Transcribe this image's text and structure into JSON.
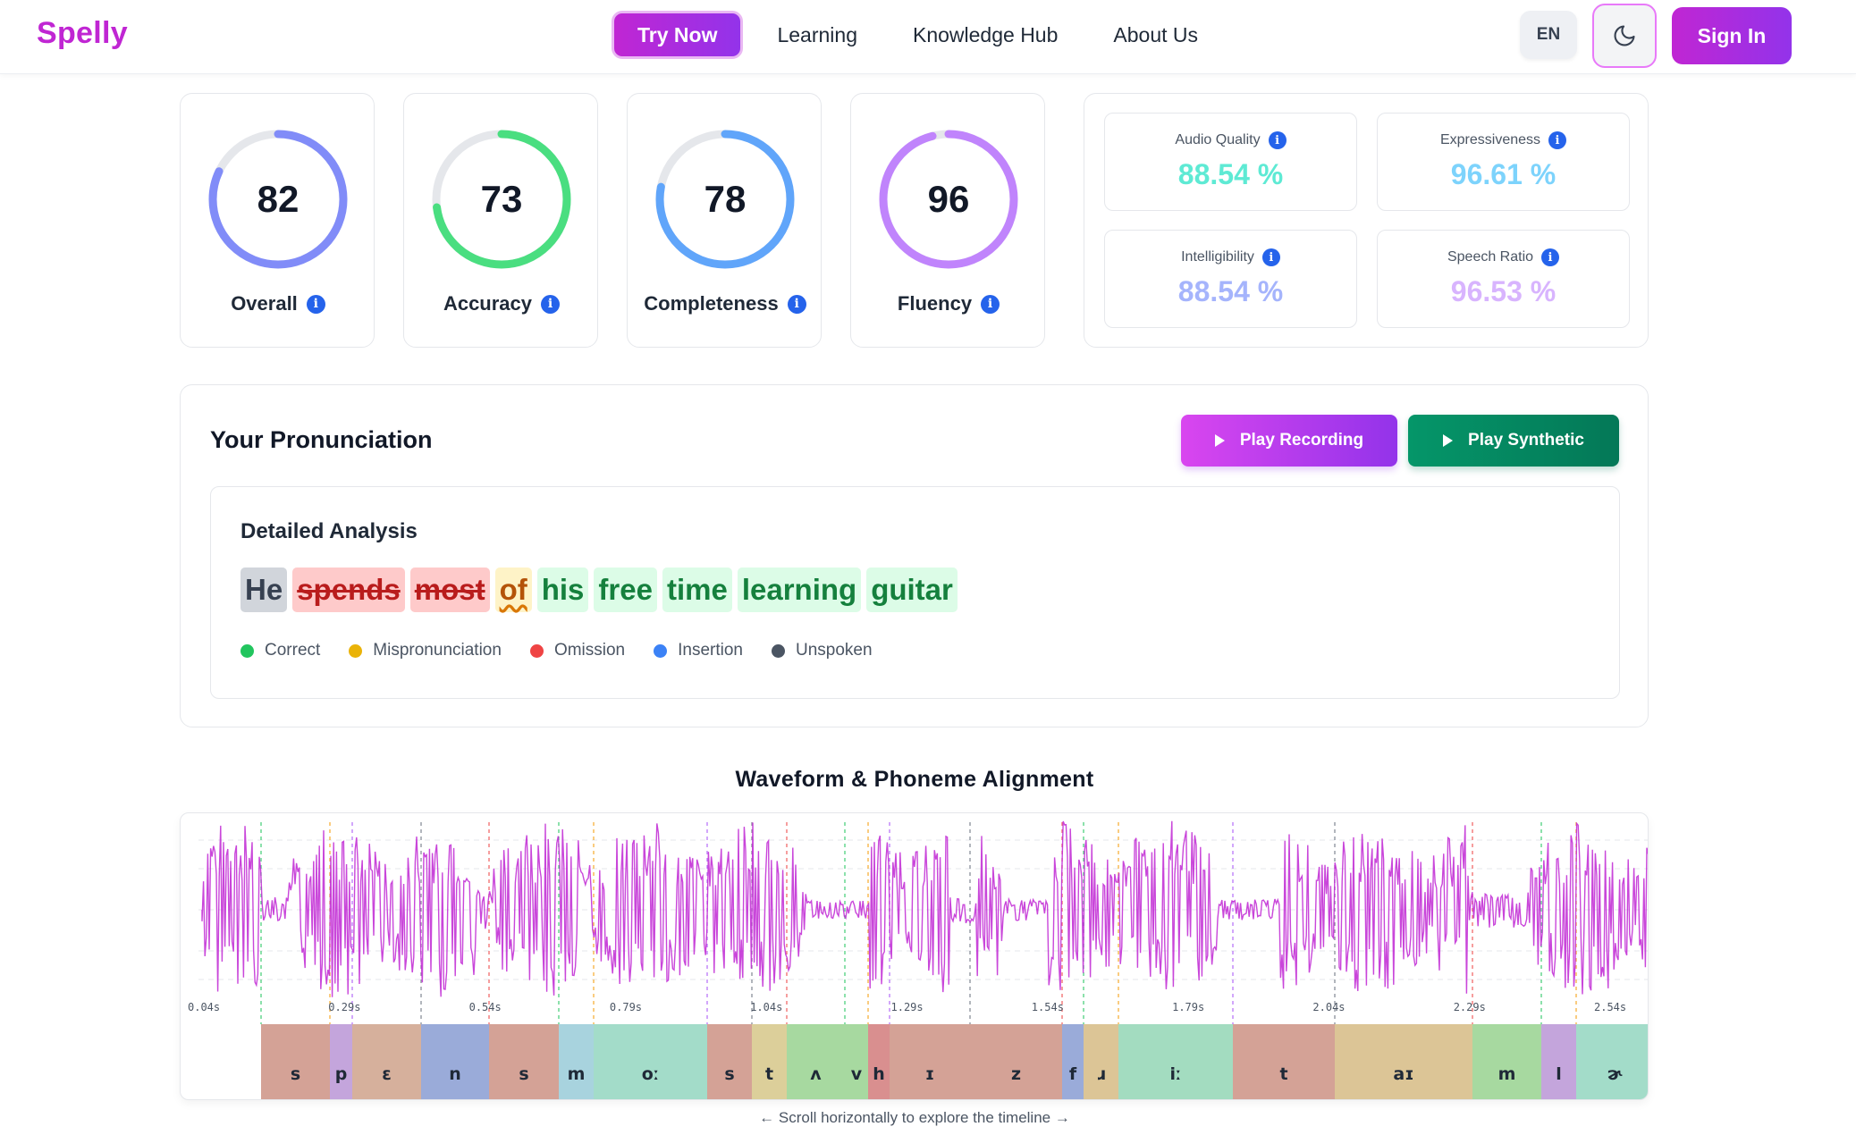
{
  "nav": {
    "logo": "Spelly",
    "try_now": "Try Now",
    "links": [
      "Learning",
      "Knowledge Hub",
      "About Us"
    ],
    "lang": "EN",
    "theme_icon": "moon-icon",
    "sign_in": "Sign In"
  },
  "scores": [
    {
      "label": "Overall",
      "value": 82,
      "color": "#818cf8"
    },
    {
      "label": "Accuracy",
      "value": 73,
      "color": "#4ade80"
    },
    {
      "label": "Completeness",
      "value": 78,
      "color": "#60a5fa"
    },
    {
      "label": "Fluency",
      "value": 96,
      "color": "#c084fc"
    }
  ],
  "metrics": [
    {
      "label": "Audio Quality",
      "value": "88.54 %",
      "color": "#5eead4"
    },
    {
      "label": "Expressiveness",
      "value": "96.61 %",
      "color": "#7dd3fc"
    },
    {
      "label": "Intelligibility",
      "value": "88.54 %",
      "color": "#a5b4fc"
    },
    {
      "label": "Speech Ratio",
      "value": "96.53 %",
      "color": "#d8b4fe"
    }
  ],
  "pronunciation": {
    "title": "Your Pronunciation",
    "play_recording": "Play Recording",
    "play_synthetic": "Play Synthetic",
    "analysis_title": "Detailed Analysis",
    "words": [
      {
        "text": "He",
        "status": "unspoken"
      },
      {
        "text": "spends",
        "status": "omission"
      },
      {
        "text": "most",
        "status": "omission"
      },
      {
        "text": "of",
        "status": "mispronunciation"
      },
      {
        "text": "his",
        "status": "correct"
      },
      {
        "text": "free",
        "status": "correct"
      },
      {
        "text": "time",
        "status": "correct"
      },
      {
        "text": "learning",
        "status": "correct"
      },
      {
        "text": "guitar",
        "status": "correct"
      }
    ],
    "legend": [
      {
        "label": "Correct",
        "color": "#22c55e"
      },
      {
        "label": "Mispronunciation",
        "color": "#eab308"
      },
      {
        "label": "Omission",
        "color": "#ef4444"
      },
      {
        "label": "Insertion",
        "color": "#3b82f6"
      },
      {
        "label": "Unspoken",
        "color": "#4b5563"
      }
    ]
  },
  "waveform": {
    "title": "Waveform & Phoneme Alignment",
    "time_labels": [
      "0.04s",
      "0.29s",
      "0.54s",
      "0.79s",
      "1.04s",
      "1.29s",
      "1.54s",
      "1.79s",
      "2.04s",
      "2.29s",
      "2.54s"
    ],
    "phonemes": [
      {
        "ipa": "s",
        "color": "#d4a296"
      },
      {
        "ipa": "p",
        "color": "#c4a5dc"
      },
      {
        "ipa": "ɛ",
        "color": "#d6b09c"
      },
      {
        "ipa": "n",
        "color": "#9aabd9"
      },
      {
        "ipa": "s",
        "color": "#d4a296"
      },
      {
        "ipa": "m",
        "color": "#a8d3de"
      },
      {
        "ipa": "oː",
        "color": "#a3dcc9"
      },
      {
        "ipa": "s",
        "color": "#d4a296"
      },
      {
        "ipa": "t",
        "color": "#dccf9a"
      },
      {
        "ipa": "ʌ",
        "color": "#a7d9a0"
      },
      {
        "ipa": "v",
        "color": "#a7d9a0"
      },
      {
        "ipa": "h",
        "color": "#d98f8f"
      },
      {
        "ipa": "ɪ",
        "color": "#d4a296"
      },
      {
        "ipa": "z",
        "color": "#d4a296"
      },
      {
        "ipa": "f",
        "color": "#9aabd9"
      },
      {
        "ipa": "ɹ",
        "color": "#dcc596"
      },
      {
        "ipa": "iː",
        "color": "#a3dcc0"
      },
      {
        "ipa": "t",
        "color": "#d4a296"
      },
      {
        "ipa": "aɪ",
        "color": "#dcc596"
      },
      {
        "ipa": "m",
        "color": "#a7d9a0"
      },
      {
        "ipa": "l",
        "color": "#c4a5dc"
      },
      {
        "ipa": "ɚ",
        "color": "#a3dcc9"
      }
    ],
    "scroll_hint": "← Scroll horizontally to explore the timeline →"
  }
}
